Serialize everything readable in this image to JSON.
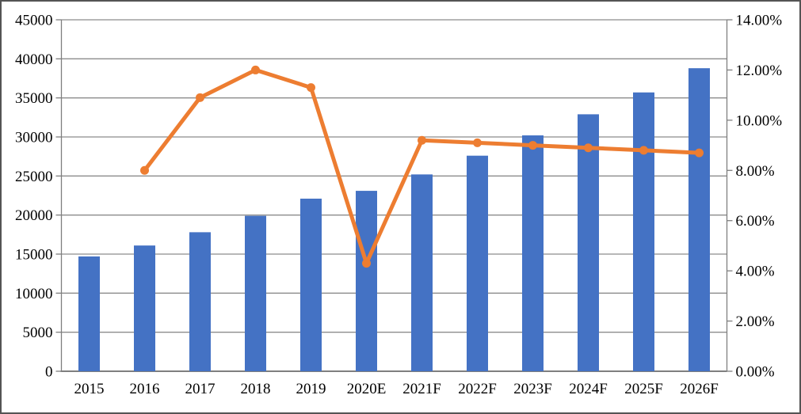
{
  "chart_data": {
    "type": "combo",
    "title": "",
    "categories": [
      "2015",
      "2016",
      "2017",
      "2018",
      "2019",
      "2020E",
      "2021F",
      "2022F",
      "2023F",
      "2024F",
      "2025F",
      "2026F"
    ],
    "series": [
      {
        "name": "volume-bars",
        "type": "bar",
        "axis": "left",
        "color": "#4472C4",
        "values": [
          14700,
          16100,
          17800,
          19900,
          22100,
          23100,
          25200,
          27600,
          30200,
          32900,
          35700,
          38800
        ]
      },
      {
        "name": "growth-rate-line",
        "type": "line",
        "axis": "right",
        "color": "#ED7D31",
        "values": [
          null,
          8.0,
          10.9,
          12.0,
          11.3,
          4.3,
          9.2,
          9.1,
          9.0,
          8.9,
          8.8,
          8.7
        ]
      }
    ],
    "left_axis": {
      "min": 0,
      "max": 45000,
      "step": 5000,
      "tick_labels": [
        "0",
        "5000",
        "10000",
        "15000",
        "20000",
        "25000",
        "30000",
        "35000",
        "40000",
        "45000"
      ]
    },
    "right_axis": {
      "min": 0,
      "max": 14,
      "step": 2,
      "tick_labels": [
        "0.00%",
        "2.00%",
        "4.00%",
        "6.00%",
        "8.00%",
        "10.00%",
        "12.00%",
        "14.00%"
      ]
    },
    "grid": true,
    "legend": false
  },
  "colors": {
    "bar": "#4472C4",
    "line": "#ED7D31",
    "grid": "#8C8C8C",
    "axis": "#7F7F7F",
    "text": "#000000",
    "frame": "#545454",
    "background": "#FFFFFF"
  }
}
